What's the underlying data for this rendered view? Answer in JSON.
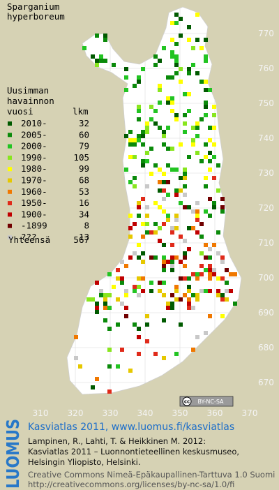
{
  "title_lines": [
    "Sparganium",
    "hyperboreum"
  ],
  "legend": {
    "header_lines": [
      "Uusimman",
      "havainnon",
      "vuosi"
    ],
    "count_header": "lkm",
    "rows": [
      {
        "label": "2010-",
        "count": 32,
        "color": "#005a00"
      },
      {
        "label": "2005-",
        "count": 60,
        "color": "#0a8a0a"
      },
      {
        "label": "2000-",
        "count": 79,
        "color": "#22c422"
      },
      {
        "label": "1990-",
        "count": 105,
        "color": "#88e61e"
      },
      {
        "label": "1980-",
        "count": 99,
        "color": "#ffff00"
      },
      {
        "label": "1970-",
        "count": 68,
        "color": "#e6c800"
      },
      {
        "label": "1960-",
        "count": 53,
        "color": "#f07800"
      },
      {
        "label": "1950-",
        "count": 16,
        "color": "#e02a1a"
      },
      {
        "label": "1900-",
        "count": 34,
        "color": "#c00000"
      },
      {
        "label": "-1899",
        "count": 8,
        "color": "#700000"
      },
      {
        "label": "???",
        "count": 13,
        "color": "#c8c8c8"
      }
    ],
    "total_label": "Yhteensä",
    "total": 567
  },
  "map": {
    "y_labels": [
      770,
      760,
      750,
      740,
      730,
      720,
      710,
      700,
      690,
      680,
      670
    ],
    "x_labels": [
      310,
      320,
      330,
      340,
      350,
      360,
      370
    ]
  },
  "cc_badge": {
    "icon": "cc",
    "text": "BY-NC-SA"
  },
  "footer": {
    "logo": "LUOMUS",
    "headline": "Kasviatlas 2011, www.luomus.fi/kasviatlas",
    "citation": [
      "Lampinen, R., Lahti, T. & Heikkinen M. 2012:",
      "Kasviatlas 2011 – Luonnontieteellinen keskusmuseo,",
      "Helsingin Yliopisto, Helsinki."
    ],
    "license": [
      "Creative Commons Nimeä-Epäkaupallinen-Tarttuva 1.0 Suomi",
      "http://creativecommons.org/licenses/by-nc-sa/1.0/fi"
    ]
  }
}
